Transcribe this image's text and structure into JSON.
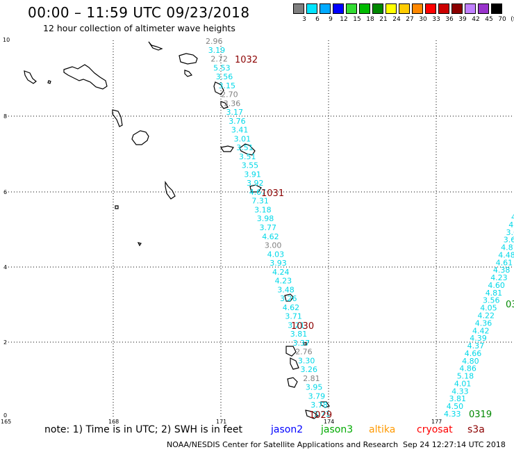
{
  "title": "00:00 – 11:59 UTC 09/23/2018",
  "subtitle": "12 hour collection of altimeter wave heights",
  "legend": {
    "unit": "(ft)",
    "items": [
      {
        "label": "3",
        "color": "#7f7f7f"
      },
      {
        "label": "6",
        "color": "#00e5ff"
      },
      {
        "label": "9",
        "color": "#00aaff"
      },
      {
        "label": "12",
        "color": "#0000ff"
      },
      {
        "label": "15",
        "color": "#33dd33"
      },
      {
        "label": "18",
        "color": "#00bb00"
      },
      {
        "label": "21",
        "color": "#008800"
      },
      {
        "label": "24",
        "color": "#ffff00"
      },
      {
        "label": "27",
        "color": "#ffcc00"
      },
      {
        "label": "30",
        "color": "#ff8800"
      },
      {
        "label": "33",
        "color": "#ff0000"
      },
      {
        "label": "36",
        "color": "#cc0000"
      },
      {
        "label": "39",
        "color": "#8b0000"
      },
      {
        "label": "42",
        "color": "#c080ff"
      },
      {
        "label": "45",
        "color": "#9933cc"
      },
      {
        "label": "70",
        "color": "#000000"
      }
    ]
  },
  "axes": {
    "x_ticks": [
      "165",
      "168",
      "171",
      "174",
      "177"
    ],
    "y_ticks": [
      "10",
      "8",
      "6",
      "4",
      "2",
      "0"
    ]
  },
  "track_west": {
    "color_cyan": "#00d8e8",
    "color_gray": "#808080",
    "readings": [
      {
        "v": "2.96",
        "c": "gray"
      },
      {
        "v": "3.19",
        "c": "cyan"
      },
      {
        "v": "2.72",
        "c": "gray"
      },
      {
        "v": "5.53",
        "c": "cyan"
      },
      {
        "v": "3.56",
        "c": "cyan"
      },
      {
        "v": "3.15",
        "c": "cyan"
      },
      {
        "v": "2.70",
        "c": "gray"
      },
      {
        "v": "3.36",
        "c": "gray"
      },
      {
        "v": "3.17",
        "c": "cyan"
      },
      {
        "v": "3.76",
        "c": "cyan"
      },
      {
        "v": "3.41",
        "c": "cyan"
      },
      {
        "v": "3.01",
        "c": "cyan"
      },
      {
        "v": "3.51",
        "c": "cyan"
      },
      {
        "v": "3.51",
        "c": "cyan"
      },
      {
        "v": "3.55",
        "c": "cyan"
      },
      {
        "v": "3.91",
        "c": "cyan"
      },
      {
        "v": "3.92",
        "c": "cyan"
      },
      {
        "v": "4.67",
        "c": "cyan"
      },
      {
        "v": "7.31",
        "c": "cyan"
      },
      {
        "v": "3.18",
        "c": "cyan"
      },
      {
        "v": "3.98",
        "c": "cyan"
      },
      {
        "v": "3.77",
        "c": "cyan"
      },
      {
        "v": "4.62",
        "c": "cyan"
      },
      {
        "v": "3.00",
        "c": "gray"
      },
      {
        "v": "4.03",
        "c": "cyan"
      },
      {
        "v": "3.93",
        "c": "cyan"
      },
      {
        "v": "4.24",
        "c": "cyan"
      },
      {
        "v": "4.23",
        "c": "cyan"
      },
      {
        "v": "3.48",
        "c": "cyan"
      },
      {
        "v": "3.26",
        "c": "cyan"
      },
      {
        "v": "4.62",
        "c": "cyan"
      },
      {
        "v": "3.71",
        "c": "cyan"
      },
      {
        "v": "3.21",
        "c": "cyan"
      },
      {
        "v": "3.81",
        "c": "cyan"
      },
      {
        "v": "3.37",
        "c": "cyan"
      },
      {
        "v": "2.76",
        "c": "gray"
      },
      {
        "v": "3.30",
        "c": "cyan"
      },
      {
        "v": "3.26",
        "c": "cyan"
      },
      {
        "v": "2.81",
        "c": "gray"
      },
      {
        "v": "3.95",
        "c": "cyan"
      },
      {
        "v": "3.79",
        "c": "cyan"
      },
      {
        "v": "3.78",
        "c": "cyan"
      },
      {
        "v": "3.71",
        "c": "cyan"
      }
    ]
  },
  "track_east": {
    "color": "#00d8e8",
    "readings": [
      "4.",
      "4.",
      "3.6",
      "3.6",
      "4.81",
      "4.48",
      "4.61",
      "4.38",
      "4.23",
      "4.60",
      "4.81",
      "3.56",
      "4.05",
      "4.22",
      "4.36",
      "4.42",
      "4.39",
      "4.37",
      "4.66",
      "4.80",
      "4.86",
      "5.18",
      "4.01",
      "4.33",
      "3.81",
      "4.50",
      "4.33"
    ]
  },
  "time_labels": [
    {
      "text": "1032",
      "color": "#8b0000"
    },
    {
      "text": "1031",
      "color": "#8b0000"
    },
    {
      "text": "1030",
      "color": "#8b0000"
    },
    {
      "text": "1029",
      "color": "#8b0000"
    },
    {
      "text": "0319",
      "color": "#008800"
    },
    {
      "text": "03",
      "color": "#008800"
    }
  ],
  "notes": {
    "note": "note:  1) Time is in UTC;  2) SWH is in feet",
    "satellites": [
      {
        "name": "jason2",
        "color": "#0000ff"
      },
      {
        "name": "jason3",
        "color": "#00aa00"
      },
      {
        "name": "altika",
        "color": "#ff9900"
      },
      {
        "name": "cryosat",
        "color": "#ff0000"
      },
      {
        "name": "s3a",
        "color": "#8b0000"
      }
    ]
  },
  "footer": {
    "agency": "NOAA/NESDIS Center for Satellite Applications and Research",
    "timestamp": "Sep 24 12:27:14 UTC 2018"
  }
}
